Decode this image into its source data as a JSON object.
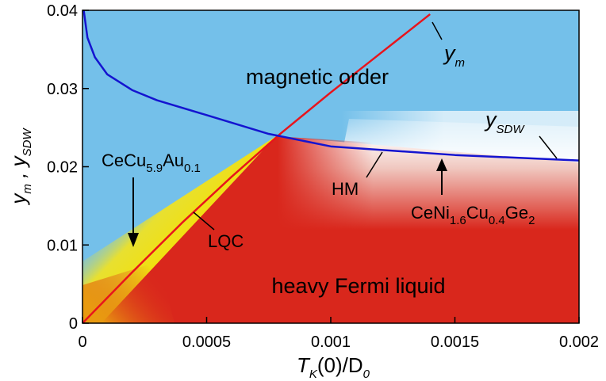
{
  "chart_data": {
    "type": "line",
    "xlabel": [
      "T",
      "K",
      "(0)/D",
      "0"
    ],
    "ylabel": [
      "y",
      "m",
      " , y",
      "SDW"
    ],
    "xlim": [
      0,
      0.002
    ],
    "ylim": [
      0,
      0.04
    ],
    "xticks": [
      0,
      0.0005,
      0.001,
      0.0015,
      0.002
    ],
    "yticks": [
      0,
      0.01,
      0.02,
      0.03,
      0.04
    ],
    "series": [
      {
        "name": [
          "y",
          "m"
        ],
        "color": "#e8141c",
        "x": [
          0,
          0.0002,
          0.0004,
          0.0006,
          0.0008,
          0.001,
          0.0012,
          0.0014
        ],
        "values": [
          0,
          0.0065,
          0.0128,
          0.0187,
          0.0243,
          0.0295,
          0.0345,
          0.0395
        ]
      },
      {
        "name": [
          "y",
          "SDW"
        ],
        "color": "#1414d0",
        "x": [
          5e-06,
          2e-05,
          5e-05,
          0.0001,
          0.0002,
          0.0003,
          0.0005,
          0.00075,
          0.001,
          0.0015,
          0.002
        ],
        "values": [
          0.04,
          0.0365,
          0.034,
          0.0318,
          0.0298,
          0.0285,
          0.0266,
          0.0242,
          0.0226,
          0.0215,
          0.0208
        ]
      }
    ],
    "annotations": {
      "magnetic": "magnetic order",
      "fermi": "heavy Fermi liquid",
      "lqc": "LQC",
      "hm": "HM",
      "cecu": [
        "CeCu",
        "5.9",
        "Au",
        "0.1"
      ],
      "ceni": [
        "CeNi",
        "1.6",
        "Cu",
        "0.4",
        "Ge",
        "2"
      ]
    }
  }
}
